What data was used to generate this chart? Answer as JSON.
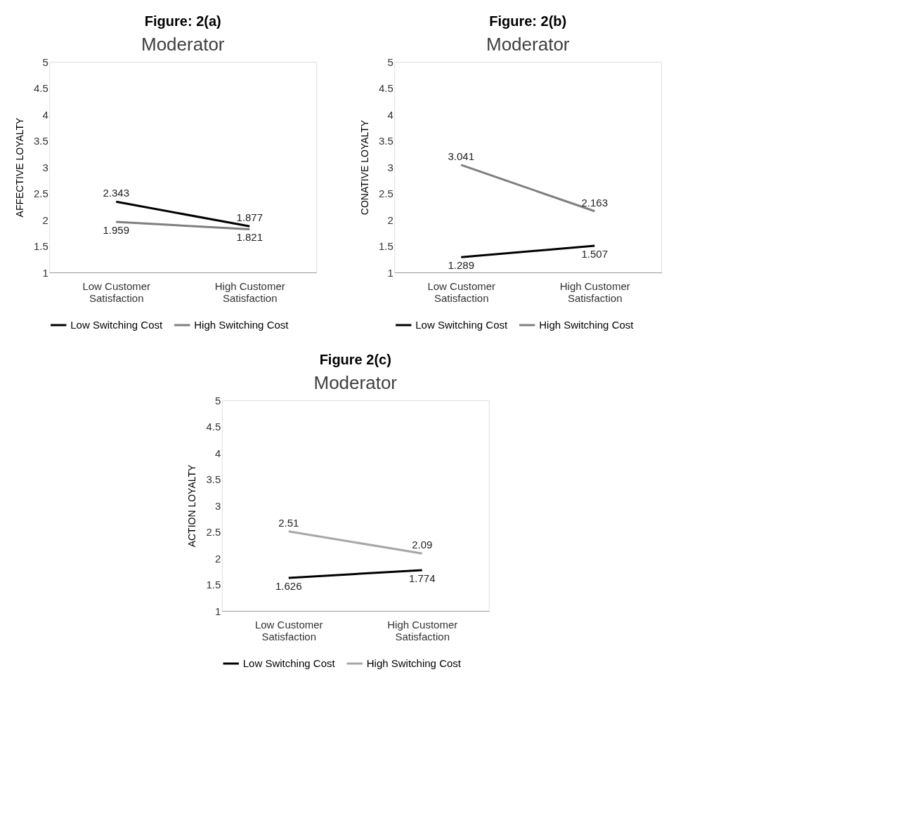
{
  "chart_data": [
    {
      "type": "line",
      "title": "Figure: 2(a)",
      "subtitle": "Moderator",
      "ylabel": "AFFECTIVE LOYALTY",
      "categories": [
        "Low Customer Satisfaction",
        "High Customer Satisfaction"
      ],
      "series": [
        {
          "name": "Low Switching Cost",
          "color": "#000000",
          "values": [
            2.343,
            1.877
          ]
        },
        {
          "name": "High Switching Cost",
          "color": "#7f7f7f",
          "values": [
            1.959,
            1.821
          ]
        }
      ],
      "ylim": [
        1,
        5
      ],
      "yticks": [
        1,
        1.5,
        2,
        2.5,
        3,
        3.5,
        4,
        4.5,
        5
      ],
      "grid": false,
      "legend": "bottom",
      "data_labels": true,
      "marker": "none",
      "line_style": "solid"
    },
    {
      "type": "line",
      "title": "Figure: 2(b)",
      "subtitle": "Moderator",
      "ylabel": "CONATIVE LOYALTY",
      "categories": [
        "Low Customer Satisfaction",
        "High Customer Satisfaction"
      ],
      "series": [
        {
          "name": "Low Switching Cost",
          "color": "#000000",
          "values": [
            1.289,
            1.507
          ]
        },
        {
          "name": "High Switching Cost",
          "color": "#7f7f7f",
          "values": [
            3.041,
            2.163
          ]
        }
      ],
      "ylim": [
        1,
        5
      ],
      "yticks": [
        1,
        1.5,
        2,
        2.5,
        3,
        3.5,
        4,
        4.5,
        5
      ],
      "grid": false,
      "legend": "bottom",
      "data_labels": true,
      "marker": "none",
      "line_style": "solid"
    },
    {
      "type": "line",
      "title": "Figure 2(c)",
      "subtitle": "Moderator",
      "ylabel": "ACTION LOYALTY",
      "categories": [
        "Low Customer Satisfaction",
        "High Customer Satisfaction"
      ],
      "series": [
        {
          "name": "Low Switching Cost",
          "color": "#000000",
          "values": [
            1.626,
            1.774
          ]
        },
        {
          "name": "High Switching Cost",
          "color": "#a6a6a6",
          "values": [
            2.51,
            2.09
          ]
        }
      ],
      "ylim": [
        1,
        5
      ],
      "yticks": [
        1,
        1.5,
        2,
        2.5,
        3,
        3.5,
        4,
        4.5,
        5
      ],
      "grid": false,
      "legend": "bottom",
      "data_labels": true,
      "marker": "none",
      "line_style": "solid"
    }
  ]
}
